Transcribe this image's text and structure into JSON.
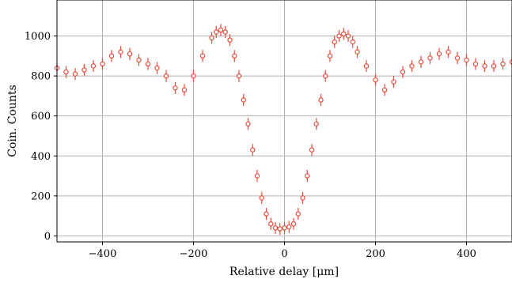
{
  "chart_data": {
    "type": "scatter",
    "xlabel": "Relative delay [μm]",
    "ylabel": "Coin. Counts",
    "xlim": [
      -500,
      500
    ],
    "ylim": [
      -30,
      1180
    ],
    "xticks": [
      -400,
      -200,
      0,
      200,
      400
    ],
    "xtick_labels": [
      "−400",
      "−200",
      "0",
      "200",
      "400"
    ],
    "yticks": [
      0,
      200,
      400,
      600,
      800,
      1000
    ],
    "ytick_labels": [
      "0",
      "200",
      "400",
      "600",
      "800",
      "1000"
    ],
    "grid": true,
    "series": [
      {
        "color": "#e84a3b",
        "marker": "open-circle-with-errorbars",
        "x": [
          -500,
          -480,
          -460,
          -440,
          -420,
          -400,
          -380,
          -360,
          -340,
          -320,
          -300,
          -280,
          -260,
          -240,
          -220,
          -200,
          -180,
          -160,
          -150,
          -140,
          -130,
          -120,
          -110,
          -100,
          -90,
          -80,
          -70,
          -60,
          -50,
          -40,
          -30,
          -20,
          -10,
          0,
          10,
          20,
          30,
          40,
          50,
          60,
          70,
          80,
          90,
          100,
          110,
          120,
          130,
          140,
          150,
          160,
          180,
          200,
          220,
          240,
          260,
          280,
          300,
          320,
          340,
          360,
          380,
          400,
          420,
          440,
          460,
          480,
          500
        ],
        "y": [
          840,
          820,
          810,
          830,
          850,
          860,
          900,
          920,
          910,
          880,
          860,
          840,
          800,
          740,
          730,
          800,
          900,
          990,
          1020,
          1030,
          1020,
          980,
          900,
          800,
          680,
          560,
          430,
          300,
          190,
          110,
          60,
          40,
          35,
          40,
          45,
          60,
          110,
          190,
          300,
          430,
          560,
          680,
          800,
          900,
          970,
          1000,
          1010,
          1000,
          970,
          920,
          850,
          780,
          730,
          770,
          820,
          850,
          870,
          890,
          910,
          920,
          890,
          880,
          860,
          850,
          850,
          860,
          870
        ],
        "yerr": 30
      }
    ]
  }
}
